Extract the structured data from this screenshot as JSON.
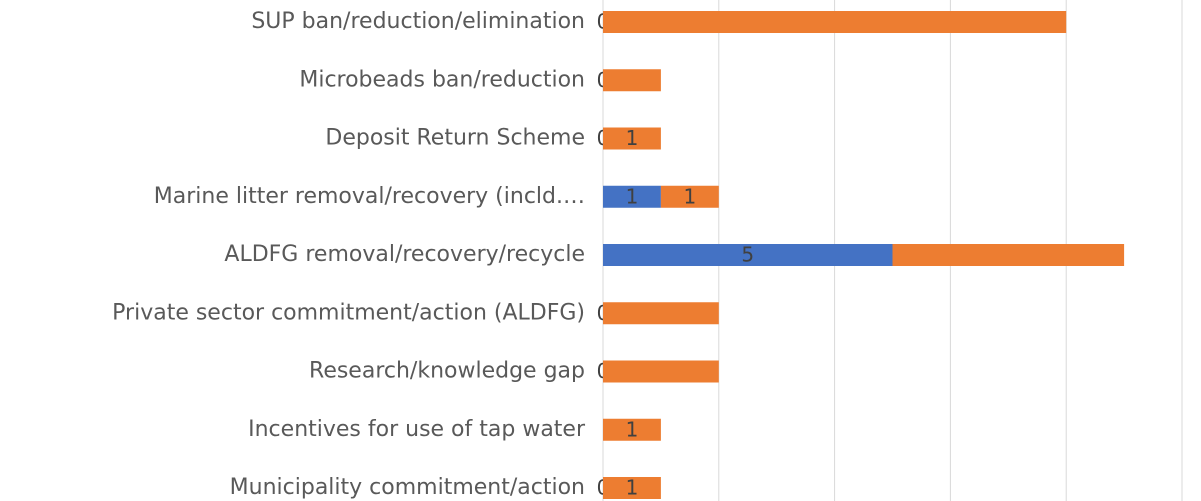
{
  "chart_data": {
    "type": "stacked_barh",
    "categories": [
      "SUP ban/reduction/elimination",
      "Microbeads ban/reduction",
      "Deposit Return Scheme",
      "Marine litter removal/recovery (incld.…",
      "ALDFG removal/recovery/recycle",
      "Private sector commitment/action (ALDFG)",
      "Research/knowledge gap",
      "Incentives for use of tap water",
      "Municipality commitment/action"
    ],
    "series": [
      {
        "color": "#4472c4",
        "values": [
          0,
          0,
          0,
          1,
          5,
          0,
          0,
          0,
          0
        ],
        "value_labels": [
          "0",
          "0",
          "0",
          "1",
          "5",
          "0",
          "0",
          null,
          "0"
        ]
      },
      {
        "color": "#ed7d31",
        "values": [
          8,
          1,
          1,
          1,
          4,
          2,
          2,
          1,
          1
        ],
        "value_labels": [
          null,
          null,
          "1",
          "1",
          null,
          null,
          null,
          "1",
          "1"
        ]
      }
    ],
    "xlim": [
      0,
      10
    ],
    "xticks": [
      0,
      2,
      4,
      6,
      8,
      10
    ],
    "grid": true
  }
}
